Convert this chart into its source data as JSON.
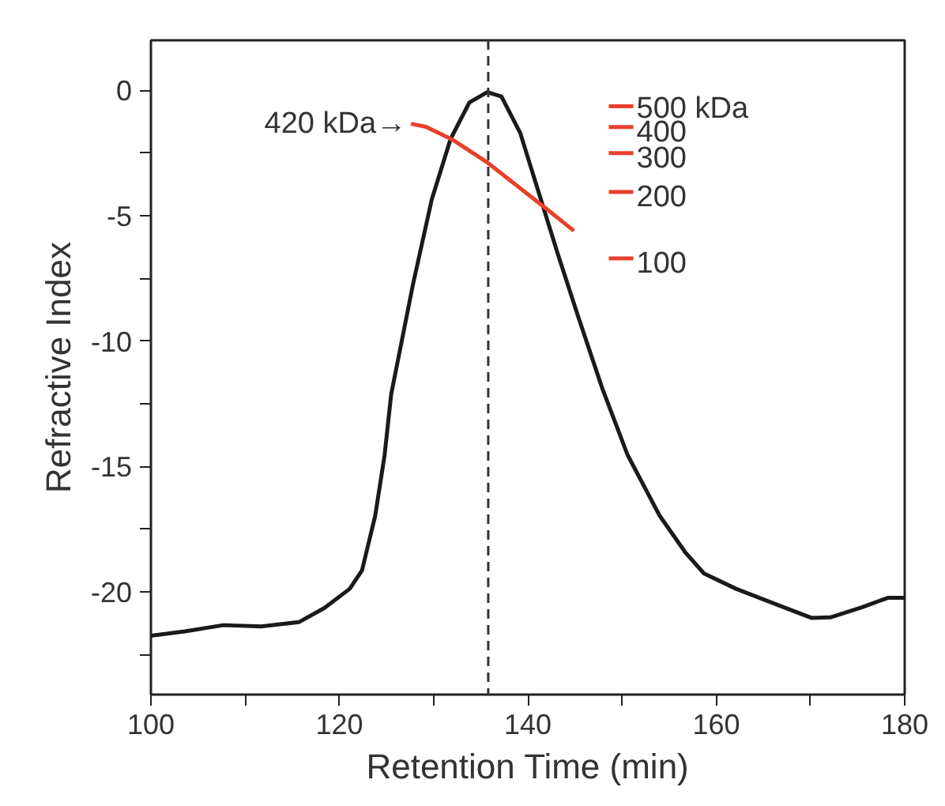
{
  "chart_data": {
    "type": "line",
    "xlabel": "Retention Time (min)",
    "ylabel": "Refractive Index",
    "xlim": [
      100,
      180
    ],
    "ylim": [
      -24.1,
      2
    ],
    "xticks": [
      100,
      {
        "value": 110,
        "label": null
      },
      120,
      {
        "value": 130,
        "label": null
      },
      140,
      {
        "value": 150,
        "label": null
      },
      160,
      {
        "value": 170,
        "label": null
      },
      180
    ],
    "yticks": [
      0,
      {
        "value": -2.5,
        "label": null
      },
      -5,
      {
        "value": -7.5,
        "label": null
      },
      -10,
      {
        "value": -12.5,
        "label": null
      },
      -15,
      {
        "value": -17.5,
        "label": null
      },
      -20,
      {
        "value": -22.5,
        "label": null
      }
    ],
    "grid": false,
    "legend": false,
    "marker": "none",
    "line_style": "solid",
    "series": [
      {
        "color": "#1a1a1a",
        "x": [
          100,
          103.6,
          107.7,
          111.7,
          115.7,
          118.4,
          121.1,
          122.4,
          123.8,
          124.8,
          125.5,
          127.8,
          129.8,
          131.8,
          133.8,
          135.7,
          137.2,
          139.2,
          141.2,
          143.2,
          145.3,
          147.9,
          150.6,
          154.0,
          156.7,
          158.7,
          162.1,
          165.4,
          170.1,
          172.1,
          175.5,
          178.2,
          180
        ],
        "values": [
          -21.75,
          -21.58,
          -21.33,
          -21.38,
          -21.21,
          -20.65,
          -19.88,
          -19.15,
          -16.97,
          -14.55,
          -12.12,
          -7.76,
          -4.36,
          -1.94,
          -0.48,
          -0.07,
          -0.24,
          -1.7,
          -4.12,
          -6.54,
          -8.97,
          -11.88,
          -14.55,
          -16.97,
          -18.42,
          -19.27,
          -19.88,
          -20.36,
          -21.04,
          -21.02,
          -20.61,
          -20.24,
          -20.24
        ]
      },
      {
        "name": "420 kDa→",
        "color": "#e8402a",
        "x": [
          127.6,
          129.2,
          132,
          135.8,
          141.9,
          144.9
        ],
        "values": [
          -1.33,
          -1.45,
          -1.96,
          -2.9,
          -4.7,
          -5.6
        ]
      },
      {
        "name": "500 kDa",
        "color": "#e8402a",
        "x": [
          148.6,
          151.2
        ],
        "values": [
          -0.63,
          -0.63
        ]
      },
      {
        "name": "400",
        "color": "#e8402a",
        "x": [
          148.6,
          151.2
        ],
        "values": [
          -1.46,
          -1.46
        ]
      },
      {
        "name": "300",
        "color": "#e8402a",
        "x": [
          148.6,
          151.2
        ],
        "values": [
          -2.5,
          -2.5
        ]
      },
      {
        "name": "200",
        "color": "#e8402a",
        "x": [
          148.6,
          151.2
        ],
        "values": [
          -4.05,
          -4.05
        ]
      },
      {
        "name": "100",
        "color": "#e8402a",
        "x": [
          148.6,
          151.2
        ],
        "values": [
          -6.7,
          -6.7
        ]
      }
    ],
    "ref_lines": [
      {
        "axis": "x",
        "value": 135.8,
        "color": "#333333",
        "line_style": "dashed"
      }
    ]
  }
}
